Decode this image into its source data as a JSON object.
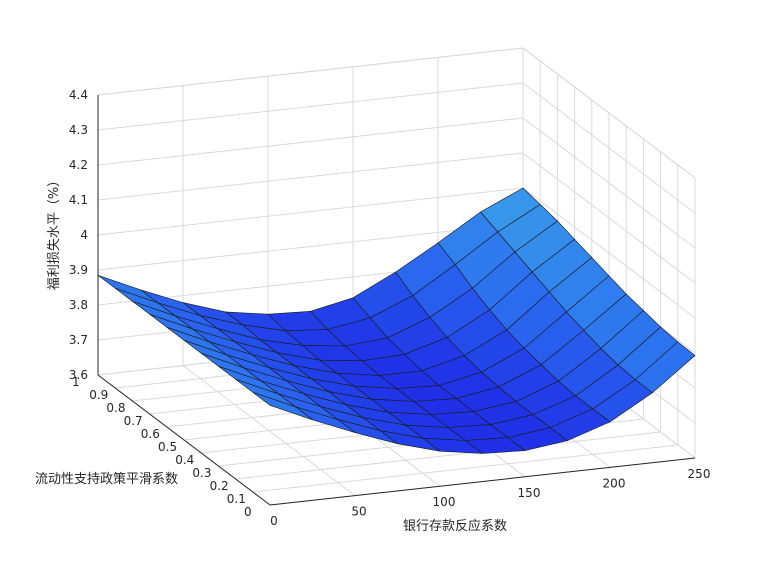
{
  "chart_data": {
    "type": "surface",
    "title": "",
    "xlabel": "银行存款反应系数",
    "ylabel": "流动性支持政策平滑系数",
    "zlabel": "福利损失水平（%）",
    "x_ticks": [
      "0",
      "50",
      "100",
      "150",
      "200",
      "250"
    ],
    "y_ticks": [
      "0",
      "0.1",
      "0.2",
      "0.3",
      "0.4",
      "0.5",
      "0.6",
      "0.7",
      "0.8",
      "0.9",
      "1"
    ],
    "z_ticks": [
      "3.6",
      "3.7",
      "3.8",
      "3.9",
      "4",
      "4.1",
      "4.2",
      "4.3",
      "4.4"
    ],
    "xlim": [
      0,
      250
    ],
    "ylim": [
      0,
      1
    ],
    "zlim": [
      3.6,
      4.4
    ],
    "grid": true,
    "colormap": [
      "#1f2fe6",
      "#2b6ff0",
      "#3aa0e8"
    ],
    "x": [
      0,
      25,
      50,
      75,
      100,
      125,
      150,
      175,
      200,
      225,
      250
    ],
    "y": [
      0,
      0.1,
      0.2,
      0.3,
      0.4,
      0.5,
      0.6,
      0.7,
      0.8,
      0.9,
      1
    ],
    "z": [
      [
        3.885,
        3.83,
        3.78,
        3.735,
        3.7,
        3.68,
        3.675,
        3.69,
        3.73,
        3.8,
        3.893
      ],
      [
        3.885,
        3.83,
        3.78,
        3.735,
        3.7,
        3.68,
        3.675,
        3.69,
        3.73,
        3.8,
        3.895
      ],
      [
        3.885,
        3.83,
        3.78,
        3.735,
        3.7,
        3.68,
        3.675,
        3.69,
        3.73,
        3.805,
        3.9
      ],
      [
        3.885,
        3.83,
        3.78,
        3.735,
        3.7,
        3.68,
        3.675,
        3.69,
        3.735,
        3.815,
        3.91
      ],
      [
        3.885,
        3.83,
        3.78,
        3.735,
        3.7,
        3.68,
        3.675,
        3.695,
        3.745,
        3.83,
        3.92
      ],
      [
        3.885,
        3.83,
        3.78,
        3.735,
        3.7,
        3.68,
        3.675,
        3.7,
        3.755,
        3.845,
        3.935
      ],
      [
        3.885,
        3.83,
        3.78,
        3.735,
        3.7,
        3.68,
        3.68,
        3.71,
        3.77,
        3.865,
        3.95
      ],
      [
        3.885,
        3.83,
        3.78,
        3.735,
        3.7,
        3.685,
        3.69,
        3.725,
        3.79,
        3.885,
        3.965
      ],
      [
        3.885,
        3.83,
        3.78,
        3.735,
        3.705,
        3.69,
        3.7,
        3.745,
        3.815,
        3.905,
        3.98
      ],
      [
        3.885,
        3.83,
        3.78,
        3.74,
        3.71,
        3.7,
        3.72,
        3.77,
        3.845,
        3.925,
        3.99
      ],
      [
        3.885,
        3.83,
        3.78,
        3.74,
        3.72,
        3.715,
        3.74,
        3.8,
        3.87,
        3.945,
        4.0
      ]
    ]
  }
}
